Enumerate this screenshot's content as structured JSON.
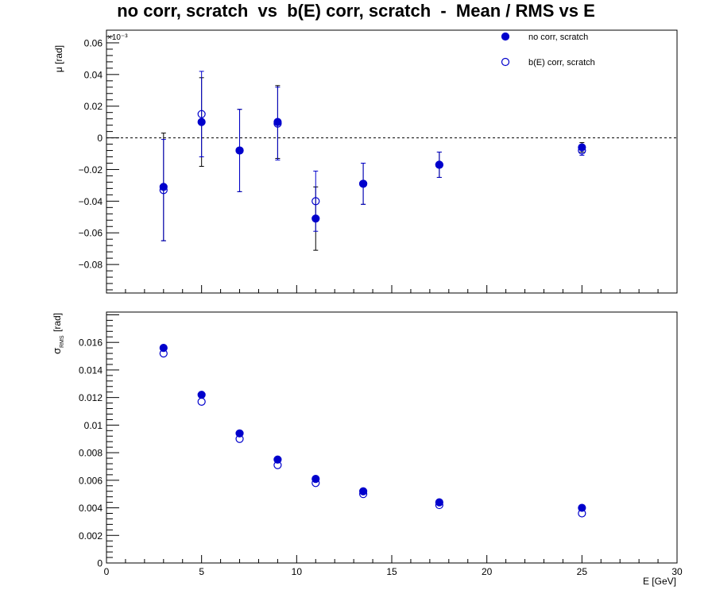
{
  "title": "no corr, scratch  vs  b(E) corr, scratch  -  Mean / RMS vs E",
  "colors": {
    "series": "#0000cc",
    "axis": "#000000",
    "background": "#ffffff"
  },
  "chart_data": [
    {
      "type": "scatter",
      "title": "no corr, scratch  vs  b(E) corr, scratch  -  Mean / RMS vs E",
      "ylabel": "μ  [rad]",
      "yexponent": "×10⁻³",
      "ylim": [
        -0.098,
        0.068
      ],
      "xlim": [
        0,
        30
      ],
      "yticks": [
        -0.08,
        -0.06,
        -0.04,
        -0.02,
        0,
        0.02,
        0.04,
        0.06
      ],
      "yticklabels": [
        "−0.08",
        "−0.06",
        "−0.04",
        "−0.02",
        "0",
        "0.02",
        "0.04",
        "0.06"
      ],
      "reference_line": 0,
      "legend": {
        "placement": "top-right",
        "entries": [
          "no corr, scratch",
          "b(E) corr, scratch"
        ]
      },
      "series": [
        {
          "name": "no corr, scratch",
          "marker": "filled-circle",
          "x": [
            3,
            5,
            7,
            9,
            11,
            13.5,
            17.5,
            25
          ],
          "y": [
            -0.031,
            0.01,
            -0.008,
            0.01,
            -0.051,
            -0.029,
            -0.017,
            -0.006
          ],
          "yerr": [
            0.034,
            0.028,
            0.026,
            0.023,
            0.02,
            0.013,
            0.008,
            0.003
          ]
        },
        {
          "name": "b(E) corr, scratch",
          "marker": "open-circle",
          "x": [
            3,
            5,
            7,
            9,
            11,
            13.5,
            17.5,
            25
          ],
          "y": [
            -0.033,
            0.015,
            -0.008,
            0.009,
            -0.04,
            -0.029,
            -0.017,
            -0.008
          ],
          "yerr": [
            0.032,
            0.027,
            0.026,
            0.023,
            0.019,
            0.013,
            0.008,
            0.003
          ]
        }
      ]
    },
    {
      "type": "scatter",
      "ylabel": "σ",
      "ylabel_sub": "RMS",
      "ylabel_unit": "[rad]",
      "xlabel": "E  [GeV]",
      "ylim": [
        0,
        0.0182
      ],
      "xlim": [
        0,
        30
      ],
      "yticks": [
        0,
        0.002,
        0.004,
        0.006,
        0.008,
        0.01,
        0.012,
        0.014,
        0.016
      ],
      "yticklabels": [
        "0",
        "0.002",
        "0.004",
        "0.006",
        "0.008",
        "0.01",
        "0.012",
        "0.014",
        "0.016"
      ],
      "xticks": [
        0,
        5,
        10,
        15,
        20,
        25,
        30
      ],
      "xticklabels": [
        "0",
        "5",
        "10",
        "15",
        "20",
        "25",
        "30"
      ],
      "series": [
        {
          "name": "no corr, scratch",
          "marker": "filled-circle",
          "x": [
            3,
            5,
            7,
            9,
            11,
            13.5,
            17.5,
            25
          ],
          "y": [
            0.0156,
            0.0122,
            0.0094,
            0.0075,
            0.0061,
            0.0052,
            0.0044,
            0.004
          ]
        },
        {
          "name": "b(E) corr, scratch",
          "marker": "open-circle",
          "x": [
            3,
            5,
            7,
            9,
            11,
            13.5,
            17.5,
            25
          ],
          "y": [
            0.0152,
            0.0117,
            0.009,
            0.0071,
            0.0058,
            0.005,
            0.0042,
            0.0036
          ]
        }
      ]
    }
  ]
}
